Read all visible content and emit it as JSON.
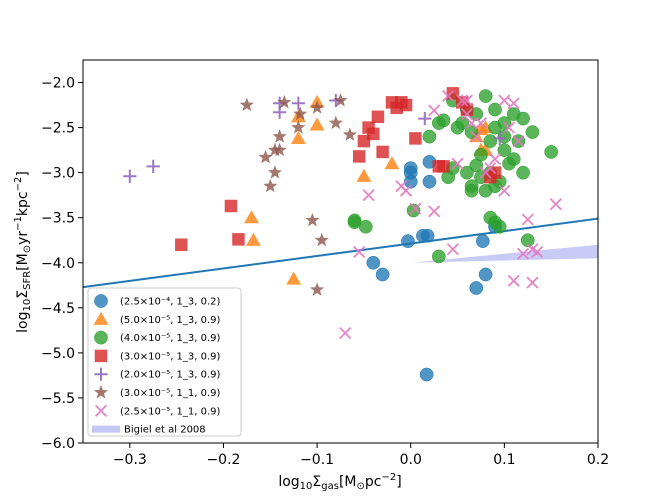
{
  "chart_data": {
    "type": "scatter",
    "title": "",
    "xlabel": "log10Σgas[M⊙pc−2]",
    "ylabel": "log10ΣSFR[M⊙yr−1kpc−2]",
    "xlim": [
      -0.35,
      0.2
    ],
    "ylim": [
      -6.0,
      -1.75
    ],
    "xticks": [
      -0.3,
      -0.2,
      -0.1,
      0.0,
      0.1,
      0.2
    ],
    "yticks": [
      -6.0,
      -5.5,
      -5.0,
      -4.5,
      -4.0,
      -3.5,
      -3.0,
      -2.5,
      -2.0
    ],
    "xtick_labels": [
      "−0.3",
      "−0.2",
      "−0.1",
      "0.0",
      "0.1",
      "0.2"
    ],
    "ytick_labels": [
      "−6.0",
      "−5.5",
      "−5.0",
      "−4.5",
      "−4.0",
      "−3.5",
      "−3.0",
      "−2.5",
      "−2.0"
    ],
    "grid": false,
    "legend_position": "lower-left",
    "series": [
      {
        "name": "(2.5×10⁻⁴, 1_3, 0.2)",
        "marker": "circle",
        "color": "#1f77b4",
        "points": [
          [
            0.0,
            -2.95
          ],
          [
            0.0,
            -3.1
          ],
          [
            0.02,
            -3.1
          ],
          [
            0.02,
            -2.88
          ],
          [
            -0.04,
            -4.0
          ],
          [
            -0.03,
            -4.13
          ],
          [
            -0.003,
            -3.76
          ],
          [
            0.013,
            -3.7
          ],
          [
            0.018,
            -3.7
          ],
          [
            0.017,
            -5.24
          ],
          [
            0.07,
            -4.28
          ],
          [
            0.08,
            -4.13
          ],
          [
            0.077,
            -3.76
          ],
          [
            0.09,
            -3.6
          ],
          [
            0.0,
            -3.0
          ]
        ]
      },
      {
        "name": "(5.0×10⁻⁵, 1_3, 0.9)",
        "marker": "triangle",
        "color": "#ff7f0e",
        "points": [
          [
            -0.17,
            -3.5
          ],
          [
            -0.168,
            -3.75
          ],
          [
            -0.125,
            -4.18
          ],
          [
            -0.12,
            -2.38
          ],
          [
            -0.12,
            -2.62
          ],
          [
            -0.1,
            -2.22
          ],
          [
            -0.1,
            -2.47
          ],
          [
            -0.05,
            -3.04
          ],
          [
            -0.02,
            -2.9
          ],
          [
            0.075,
            -2.52
          ],
          [
            0.075,
            -2.75
          ],
          [
            0.07,
            -2.6
          ],
          [
            0.08,
            -2.75
          ],
          [
            0.08,
            -2.5
          ]
        ]
      },
      {
        "name": "(4.0×10⁻⁵, 1_3, 0.9)",
        "marker": "circle",
        "color": "#2ca02c",
        "points": [
          [
            -0.06,
            -3.53
          ],
          [
            -0.06,
            -3.55
          ],
          [
            -0.048,
            -3.6
          ],
          [
            0.003,
            -3.42
          ],
          [
            0.02,
            -2.6
          ],
          [
            0.03,
            -3.93
          ],
          [
            0.03,
            -2.45
          ],
          [
            0.045,
            -2.2
          ],
          [
            0.05,
            -2.5
          ],
          [
            0.06,
            -2.3
          ],
          [
            0.065,
            -2.55
          ],
          [
            0.065,
            -3.2
          ],
          [
            0.07,
            -2.35
          ],
          [
            0.075,
            -2.8
          ],
          [
            0.08,
            -2.15
          ],
          [
            0.085,
            -2.65
          ],
          [
            0.085,
            -3.5
          ],
          [
            0.09,
            -3.55
          ],
          [
            0.09,
            -2.5
          ],
          [
            0.09,
            -3.15
          ],
          [
            0.095,
            -3.6
          ],
          [
            0.1,
            -2.75
          ],
          [
            0.1,
            -2.45
          ],
          [
            0.105,
            -2.9
          ],
          [
            0.11,
            -2.35
          ],
          [
            0.115,
            -2.65
          ],
          [
            0.12,
            -3.0
          ],
          [
            0.125,
            -3.75
          ],
          [
            0.13,
            -2.55
          ],
          [
            0.15,
            -2.77
          ],
          [
            0.06,
            -3.0
          ],
          [
            0.04,
            -3.05
          ],
          [
            0.045,
            -2.95
          ],
          [
            0.07,
            -2.92
          ],
          [
            0.08,
            -3.2
          ],
          [
            0.09,
            -2.3
          ],
          [
            0.1,
            -2.6
          ],
          [
            0.11,
            -2.85
          ],
          [
            0.12,
            -2.4
          ],
          [
            0.055,
            -2.45
          ],
          [
            0.075,
            -3.05
          ],
          [
            0.085,
            -3.0
          ],
          [
            0.095,
            -3.1
          ],
          [
            0.065,
            -3.15
          ],
          [
            0.035,
            -2.42
          ]
        ]
      },
      {
        "name": "(3.0×10⁻⁵, 1_3, 0.9)",
        "marker": "square",
        "color": "#d62728",
        "points": [
          [
            -0.245,
            -3.8
          ],
          [
            -0.192,
            -3.37
          ],
          [
            -0.184,
            -3.74
          ],
          [
            -0.055,
            -2.82
          ],
          [
            -0.05,
            -2.65
          ],
          [
            -0.045,
            -2.5
          ],
          [
            -0.04,
            -2.57
          ],
          [
            -0.035,
            -2.38
          ],
          [
            -0.03,
            -2.77
          ],
          [
            -0.02,
            -2.22
          ],
          [
            -0.015,
            -2.28
          ],
          [
            -0.01,
            -2.22
          ],
          [
            -0.005,
            -2.25
          ],
          [
            0.005,
            -2.62
          ],
          [
            0.03,
            -2.93
          ],
          [
            0.035,
            -2.93
          ],
          [
            0.045,
            -2.12
          ],
          [
            0.055,
            -2.22
          ],
          [
            0.06,
            -2.3
          ],
          [
            0.09,
            -3.0
          ],
          [
            0.085,
            -3.05
          ]
        ]
      },
      {
        "name": "(2.0×10⁻⁵, 1_3, 0.9)",
        "marker": "plus",
        "color": "#9467bd",
        "points": [
          [
            -0.3,
            -3.04
          ],
          [
            -0.275,
            -2.93
          ],
          [
            -0.14,
            -2.33
          ],
          [
            -0.14,
            -2.23
          ],
          [
            -0.12,
            -2.23
          ],
          [
            -0.08,
            -2.2
          ],
          [
            0.015,
            -2.4
          ],
          [
            0.095,
            -2.62
          ]
        ]
      },
      {
        "name": "(3.0×10⁻⁵, 1_1, 0.9)",
        "marker": "star",
        "color": "#8c564b",
        "points": [
          [
            -0.145,
            -2.75
          ],
          [
            -0.14,
            -2.75
          ],
          [
            -0.14,
            -2.6
          ],
          [
            -0.135,
            -2.22
          ],
          [
            -0.12,
            -2.5
          ],
          [
            -0.118,
            -2.35
          ],
          [
            -0.1,
            -2.28
          ],
          [
            -0.105,
            -3.53
          ],
          [
            -0.1,
            -4.3
          ],
          [
            -0.08,
            -2.45
          ],
          [
            -0.075,
            -2.2
          ],
          [
            -0.065,
            -2.58
          ],
          [
            -0.095,
            -3.75
          ],
          [
            -0.145,
            -3.0
          ],
          [
            -0.15,
            -3.15
          ],
          [
            -0.155,
            -2.83
          ],
          [
            -0.175,
            -2.25
          ]
        ]
      },
      {
        "name": "(2.5×10⁻⁵, 1_1, 0.9)",
        "marker": "x",
        "color": "#e377c2",
        "points": [
          [
            -0.07,
            -4.78
          ],
          [
            -0.055,
            -3.88
          ],
          [
            -0.045,
            -3.25
          ],
          [
            -0.01,
            -3.15
          ],
          [
            -0.005,
            -3.2
          ],
          [
            0.025,
            -3.43
          ],
          [
            0.025,
            -2.31
          ],
          [
            0.05,
            -2.9
          ],
          [
            0.055,
            -2.2
          ],
          [
            0.06,
            -2.35
          ],
          [
            0.06,
            -2.2
          ],
          [
            0.065,
            -2.45
          ],
          [
            0.07,
            -2.6
          ],
          [
            0.075,
            -2.45
          ],
          [
            0.08,
            -3.0
          ],
          [
            0.085,
            -2.95
          ],
          [
            0.09,
            -2.85
          ],
          [
            0.1,
            -2.2
          ],
          [
            0.1,
            -3.2
          ],
          [
            0.105,
            -2.5
          ],
          [
            0.11,
            -2.23
          ],
          [
            0.115,
            -2.65
          ],
          [
            0.12,
            -3.9
          ],
          [
            0.125,
            -3.52
          ],
          [
            0.13,
            -3.85
          ],
          [
            0.135,
            -3.88
          ],
          [
            0.11,
            -4.2
          ],
          [
            0.13,
            -4.22
          ],
          [
            0.155,
            -3.35
          ],
          [
            0.045,
            -3.85
          ],
          [
            0.04,
            -2.15
          ],
          [
            0.005,
            -3.4
          ]
        ]
      }
    ],
    "fit_line": {
      "name": "fit",
      "color": "#1f77b4",
      "x": [
        -0.35,
        0.2
      ],
      "y": [
        -4.27,
        -3.51
      ]
    },
    "band": {
      "name": "Bigiel et al 2008",
      "color": "#c5c8f5",
      "x": [
        0.0,
        0.2
      ],
      "y_upper": [
        -4.0,
        -3.8
      ],
      "y_lower": [
        -4.0,
        -3.95
      ]
    }
  },
  "legend_items": [
    {
      "label": "(2.5×10⁻⁴, 1_3, 0.2)"
    },
    {
      "label": "(5.0×10⁻⁵, 1_3, 0.9)"
    },
    {
      "label": "(4.0×10⁻⁵, 1_3, 0.9)"
    },
    {
      "label": "(3.0×10⁻⁵, 1_3, 0.9)"
    },
    {
      "label": "(2.0×10⁻⁵, 1_3, 0.9)"
    },
    {
      "label": "(3.0×10⁻⁵, 1_1, 0.9)"
    },
    {
      "label": "(2.5×10⁻⁵, 1_1, 0.9)"
    },
    {
      "label": "Bigiel et al 2008"
    }
  ]
}
